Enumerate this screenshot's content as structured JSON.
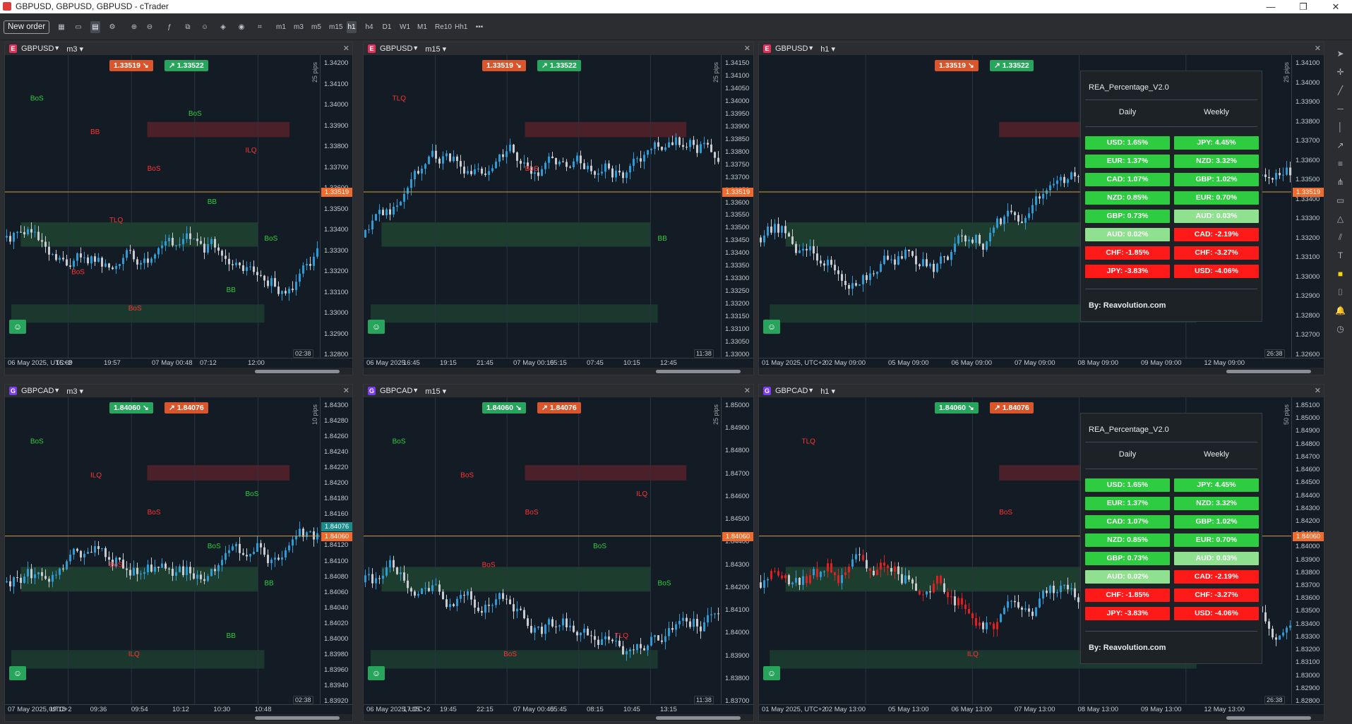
{
  "window": {
    "title": "GBPUSD, GBPUSD, GBPUSD - cTrader",
    "minimize": "—",
    "restore": "❐",
    "close": "✕"
  },
  "toolbar": {
    "new_order": "New order",
    "timeframes": [
      "m1",
      "m3",
      "m5",
      "m15",
      "h1",
      "h4",
      "D1",
      "W1",
      "M1",
      "Re10",
      "Hh1"
    ],
    "selected_timeframe": "h1",
    "more": "•••"
  },
  "colors": {
    "accent": "#f06b2c",
    "buy": "#27a55c",
    "sell": "#d9552b",
    "bg": "#131c25",
    "green_cell": "#2ecc40",
    "light_green_cell": "#8fe08f",
    "red_cell": "#ff1a1a"
  },
  "panes": [
    {
      "symbol": "GBPUSD",
      "badge": "E",
      "tf": "m3",
      "bid": "1.33519",
      "ask": "1.33522",
      "bid_color": "sell",
      "ask_color": "buy",
      "yticks": [
        "1.34200",
        "1.34100",
        "1.34000",
        "1.33900",
        "1.33800",
        "1.33700",
        "1.33600",
        "1.33500",
        "1.33400",
        "1.33300",
        "1.33200",
        "1.33100",
        "1.33000",
        "1.32900",
        "1.32800"
      ],
      "current": "1.33519",
      "pips": "25 pips",
      "xticks": [
        "06 May 2025, UTC+2",
        "15:09",
        "19:57",
        "07 May 00:48",
        "07:12",
        "12:00"
      ],
      "countdown": "02:38",
      "labels": [
        "BoS",
        "BoS",
        "BoS",
        "BoS",
        "ILQ",
        "TLQ",
        "BB",
        "BB",
        "BB",
        "BoS",
        "BoS"
      ]
    },
    {
      "symbol": "GBPUSD",
      "badge": "E",
      "tf": "m15",
      "bid": "1.33519",
      "ask": "1.33522",
      "bid_color": "sell",
      "ask_color": "buy",
      "yticks": [
        "1.34150",
        "1.34100",
        "1.34050",
        "1.34000",
        "1.33950",
        "1.33900",
        "1.33850",
        "1.33800",
        "1.33750",
        "1.33700",
        "1.33650",
        "1.33600",
        "1.33550",
        "1.33500",
        "1.33450",
        "1.33400",
        "1.33350",
        "1.33300",
        "1.33250",
        "1.33200",
        "1.33150",
        "1.33100",
        "1.33050",
        "1.33000"
      ],
      "current": "1.33519",
      "pips": "25 pips",
      "xticks": [
        "06 May 2025",
        "16:45",
        "19:15",
        "21:45",
        "07 May 00:15",
        "05:15",
        "07:45",
        "10:15",
        "12:45"
      ],
      "countdown": "11:38",
      "labels": [
        "TLQ",
        "BoS",
        "BB"
      ]
    },
    {
      "symbol": "GBPUSD",
      "badge": "E",
      "tf": "h1",
      "bid": "1.33519",
      "ask": "1.33522",
      "bid_color": "sell",
      "ask_color": "buy",
      "yticks": [
        "1.34100",
        "1.34000",
        "1.33900",
        "1.33800",
        "1.33700",
        "1.33600",
        "1.33500",
        "1.33400",
        "1.33300",
        "1.33200",
        "1.33100",
        "1.33000",
        "1.32900",
        "1.32800",
        "1.32700",
        "1.32600"
      ],
      "current": "1.33519",
      "pips": "25 pips",
      "xticks": [
        "01 May 2025, UTC+2",
        "02 May 09:00",
        "05 May 09:00",
        "06 May 09:00",
        "07 May 09:00",
        "08 May 09:00",
        "09 May 09:00",
        "12 May 09:00"
      ],
      "countdown": "26:38",
      "labels": []
    },
    {
      "symbol": "GBPCAD",
      "badge": "G",
      "tf": "m3",
      "bid": "1.84060",
      "ask": "1.84076",
      "bid_color": "buy",
      "ask_color": "sell",
      "yticks": [
        "1.84300",
        "1.84280",
        "1.84260",
        "1.84240",
        "1.84220",
        "1.84200",
        "1.84180",
        "1.84160",
        "1.84140",
        "1.84120",
        "1.84100",
        "1.84080",
        "1.84060",
        "1.84040",
        "1.84020",
        "1.84000",
        "1.83980",
        "1.83960",
        "1.83940",
        "1.83920"
      ],
      "current": "1.84060",
      "current2": "1.84076",
      "pips": "10 pips",
      "xticks": [
        "07 May 2025, UTC+2",
        "09:18",
        "09:36",
        "09:54",
        "10:12",
        "10:30",
        "10:48"
      ],
      "countdown": "02:38",
      "labels": [
        "BoS",
        "BoS",
        "BB",
        "ILQ",
        "BoS",
        "BoS",
        "BB",
        "ILQ",
        "BoS"
      ]
    },
    {
      "symbol": "GBPCAD",
      "badge": "G",
      "tf": "m15",
      "bid": "1.84060",
      "ask": "1.84076",
      "bid_color": "buy",
      "ask_color": "sell",
      "yticks": [
        "1.85000",
        "1.84900",
        "1.84800",
        "1.84700",
        "1.84600",
        "1.84500",
        "1.84400",
        "1.84300",
        "1.84200",
        "1.84100",
        "1.84000",
        "1.83900",
        "1.83800",
        "1.83700"
      ],
      "current": "1.84060",
      "pips": "25 pips",
      "xticks": [
        "06 May 2025, UTC+2",
        "17:15",
        "19:45",
        "22:15",
        "07 May 00:45",
        "05:45",
        "08:15",
        "10:45",
        "13:15"
      ],
      "countdown": "11:38",
      "labels": [
        "BoS",
        "BoS",
        "BoS",
        "BoS",
        "ILQ",
        "BoS",
        "TLQ",
        "BoS",
        "BoS"
      ]
    },
    {
      "symbol": "GBPCAD",
      "badge": "G",
      "tf": "h1",
      "bid": "1.84060",
      "ask": "1.84076",
      "bid_color": "buy",
      "ask_color": "sell",
      "yticks": [
        "1.85100",
        "1.85000",
        "1.84900",
        "1.84800",
        "1.84700",
        "1.84600",
        "1.84500",
        "1.84400",
        "1.84300",
        "1.84200",
        "1.84100",
        "1.84000",
        "1.83900",
        "1.83800",
        "1.83700",
        "1.83600",
        "1.83500",
        "1.83400",
        "1.83300",
        "1.83200",
        "1.83100",
        "1.83000",
        "1.82900",
        "1.82800"
      ],
      "current": "1.84060",
      "pips": "50 pips",
      "xticks": [
        "01 May 2025, UTC+2",
        "02 May 13:00",
        "05 May 13:00",
        "06 May 13:00",
        "07 May 13:00",
        "08 May 13:00",
        "09 May 13:00",
        "12 May 13:00"
      ],
      "countdown": "26:38",
      "labels": [
        "TLQ",
        "BoS",
        "BoS",
        "ILQ"
      ]
    }
  ],
  "rea_panel": {
    "title": "REA_Percentage_V2.0",
    "daily_header": "Daily",
    "weekly_header": "Weekly",
    "byline": "By: Reavolution.com",
    "daily": [
      {
        "t": "USD: 1.65%",
        "c": "green"
      },
      {
        "t": "EUR: 1.37%",
        "c": "green"
      },
      {
        "t": "CAD: 1.07%",
        "c": "green"
      },
      {
        "t": "NZD: 0.85%",
        "c": "green"
      },
      {
        "t": "GBP: 0.73%",
        "c": "green"
      },
      {
        "t": "AUD: 0.02%",
        "c": "light"
      },
      {
        "t": "CHF: -1.85%",
        "c": "red"
      },
      {
        "t": "JPY: -3.83%",
        "c": "red"
      }
    ],
    "weekly": [
      {
        "t": "JPY: 4.45%",
        "c": "green"
      },
      {
        "t": "NZD: 3.32%",
        "c": "green"
      },
      {
        "t": "GBP: 1.02%",
        "c": "green"
      },
      {
        "t": "EUR: 0.70%",
        "c": "green"
      },
      {
        "t": "AUD: 0.03%",
        "c": "light"
      },
      {
        "t": "CAD: -2.19%",
        "c": "red"
      },
      {
        "t": "CHF: -3.27%",
        "c": "red"
      },
      {
        "t": "USD: -4.06%",
        "c": "red"
      }
    ]
  },
  "right_tools": [
    "cursor-icon",
    "crosshair-icon",
    "trendline-icon",
    "horizontal-line-icon",
    "vertical-line-icon",
    "ray-icon",
    "fibonacci-icon",
    "pitchfork-icon",
    "rectangle-icon",
    "triangle-icon",
    "channel-icon",
    "text-icon",
    "color-swatch-icon",
    "camera-icon",
    "alert-icon",
    "history-icon"
  ]
}
